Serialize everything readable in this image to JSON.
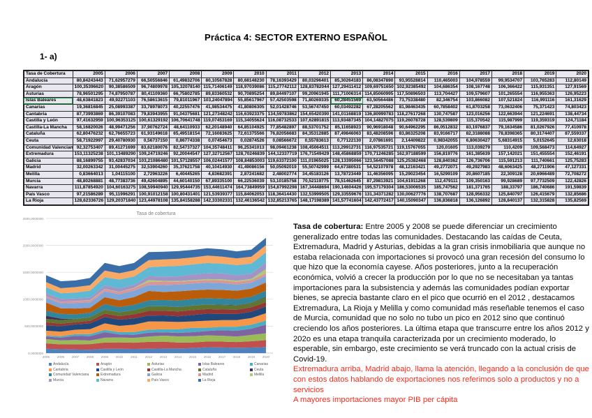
{
  "page": {
    "title": "Práctica 4: SECTOR EXTERNO ESPAÑOL",
    "exercise_label": "1- a)"
  },
  "colors": {
    "red_text": "#FC2B1C",
    "table_cell_bg": "#E8E7F0",
    "active_cell_outline": "#1E9F4E",
    "grid_line": "#D9D9D9",
    "axis_text": "#8C8C8C",
    "chart_title_text": "#7F7F7F"
  },
  "table": {
    "header_label": "Tasa de Cobertura",
    "years": [
      "2005",
      "2006",
      "2007",
      "2008",
      "2009",
      "2010",
      "2011",
      "2012",
      "2013",
      "2014",
      "2015",
      "2016",
      "2017",
      "2018",
      "2019",
      "2020"
    ],
    "active_cell": {
      "region": "Islas Baleares",
      "year": "2013"
    },
    "rows": [
      {
        "name": "Andalucía",
        "values": [
          "80,84243443",
          "71,62957279",
          "66,50556846",
          "61,49832706",
          "80,10567828",
          "80,68148230",
          "78,16393429",
          "80,03296401",
          "85,30264183",
          "86,08347890",
          "93,95528814",
          "110,465003",
          "104,978559",
          "99,9534707",
          "103,765283",
          "112,80149"
        ]
      },
      {
        "name": "Aragón",
        "values": [
          "100,35396620",
          "90,38586509",
          "96,74809978",
          "105,32078140",
          "115,71406149",
          "118,97039086",
          "115,27742112",
          "128,83782044",
          "127,29411412",
          "109,69751650",
          "102,92385492",
          "104,686354",
          "108,167748",
          "106,366422",
          "115,931351",
          "127,91569"
        ]
      },
      {
        "name": "Asturias",
        "values": [
          "78,96501295",
          "74,87950787",
          "80,41109360",
          "66,75802785",
          "89,83360532",
          "90,70895254",
          "89,84497107",
          "99,20961945",
          "111,71006314",
          "114,85060995",
          "117,50896503",
          "113,704427",
          "109,579607",
          "101,265554",
          "116,955363",
          "126,95223"
        ]
      },
      {
        "name": "Islas Baleares",
        "values": [
          "48,63841823",
          "49,92271103",
          "76,58613615",
          "79,81011967",
          "103,24047894",
          "55,85617967",
          "57,42503598",
          "71,80269335",
          "60,28451569",
          "63,50564486",
          "73,75338480",
          "82,346754",
          "103,866082",
          "107,521824",
          "116,991116",
          "161,31629"
        ]
      },
      {
        "name": "Canarias",
        "values": [
          "19,36816845",
          "25,08993387",
          "33,78978073",
          "40,22557476",
          "41,98534475",
          "41,80806305",
          "52,01428746",
          "53,56747450",
          "60,03492282",
          "67,28205562",
          "81,98463435",
          "60,7858402",
          "61,8703258",
          "73,0632406",
          "75,371423",
          "74,803423"
        ]
      },
      {
        "name": "Cantabria",
        "values": [
          "87,73993869",
          "86,39107083",
          "79,83943955",
          "91,04375681",
          "121,27348242",
          "116,63923375",
          "134,59783862",
          "154,65420390",
          "141,01168819",
          "136,80999783",
          "118,27617268",
          "130,747587",
          "123,016256",
          "122,663944",
          "121,224691",
          "138,44734"
        ]
      },
      {
        "name": "Castilla y León",
        "values": [
          "97,41632959",
          "100,96353125",
          "100,61329192",
          "106,70641748",
          "119,07453169",
          "115,34055624",
          "116,08732533",
          "107,62891815",
          "113,93487345",
          "104,14827075",
          "119,26078728",
          "128,539809",
          "115,370542",
          "115,987999",
          "119,359319",
          "124,71184"
        ]
      },
      {
        "name": "Castilla-La Mancha",
        "values": [
          "58,16820026",
          "48,99471256",
          "37,90762724",
          "48,64110933",
          "62,20148940",
          "64,85104925",
          "77,85482897",
          "88,53701752",
          "85,11658923",
          "90,96918048",
          "90,64962295",
          "86,0512832",
          "83,1976837",
          "79,1634586",
          "81,0267926",
          "77,410978"
        ]
      },
      {
        "name": "Cataluña",
        "values": [
          "62,80476232",
          "62,76655723",
          "61,93149618",
          "65,49518154",
          "72,16083625",
          "72,61375566",
          "76,82056683",
          "84,35312885",
          "87,49846063",
          "83,48208596",
          "83,86325208",
          "83,9166717",
          "82,3188088",
          "78,8398365",
          "80,3174407",
          "87,559337"
        ]
      },
      {
        "name": "Ceuta",
        "values": [
          "58,71922997",
          "29,40780930",
          "0,56737150",
          "0,86774338",
          "0,07454673",
          "0,02874526",
          "0,08566672",
          "0,55783613",
          "0,77122130",
          "2,07861691",
          "2,14409822",
          "0,98342055",
          "6,80630427",
          "5,68314915",
          "5,0152645",
          "12,63018"
        ]
      },
      {
        "name": "Comunidad Valenciana",
        "values": [
          "92,32753407",
          "89,41271699",
          "83,62180076",
          "82,54737327",
          "104,35748411",
          "96,25341013",
          "98,09461238",
          "108,45064511",
          "113,29912731",
          "116,97535721",
          "119,15767055",
          "120,01605",
          "113,039279",
          "110,4209",
          "109,568473",
          "114,64927"
        ]
      },
      {
        "name": "Extremadura",
        "values": [
          "153,11325238",
          "101,13489290",
          "109,24719246",
          "92,20044547",
          "127,32712567",
          "128,70246839",
          "144,12337719",
          "176,71549429",
          "148,45868859",
          "170,71246285",
          "162,97188599",
          "156,819776",
          "161,385639",
          "157,142021",
          "151,455554",
          "152,46191"
        ]
      },
      {
        "name": "Galicia",
        "values": [
          "88,16899755",
          "93,42837034",
          "103,21086480",
          "101,57128557",
          "106,02441577",
          "108,84853003",
          "119,63372100",
          "111,01965025",
          "128,13395066",
          "123,56457088",
          "125,25382468",
          "128,840362",
          "126,736706",
          "115,591213",
          "111,740661",
          "125,75283"
        ]
      },
      {
        "name": "Madrid",
        "values": [
          "32,00263342",
          "31,00445275",
          "32,53904260",
          "35,37621758",
          "40,10414930",
          "41,49086156",
          "50,05092019",
          "55,50742999",
          "64,67380531",
          "54,52107978",
          "48,12163421",
          "49,2772071",
          "49,2927983",
          "48,6063425",
          "48,2711906",
          "47,127331"
        ]
      },
      {
        "name": "Melilla",
        "values": [
          "0,83664013",
          "1,04115100",
          "2,72963226",
          "6,40445265",
          "4,83682391",
          "2,87241682",
          "2,48002774",
          "34,45183126",
          "13,78723449",
          "11,46356095",
          "15,29023454",
          "16,5299109",
          "20,8607185",
          "22,309128",
          "20,6966489",
          "72,708272"
        ]
      },
      {
        "name": "Murcia",
        "values": [
          "48,80268881",
          "48,77383736",
          "49,42604895",
          "44,60140150",
          "67,89335100",
          "66,22536039",
          "53,10185758",
          "70,52119775",
          "78,51462645",
          "87,29813921",
          "104,61911268",
          "112,479111",
          "109,350163",
          "99,928689",
          "97,7732509",
          "122,42826"
        ]
      },
      {
        "name": "Navarra",
        "values": [
          "111,87854920",
          "104,60163275",
          "108,59940940",
          "129,95444735",
          "153,44611474",
          "164,73849959",
          "154,87992298",
          "167,34448694",
          "190,14604426",
          "195,57179304",
          "186,53006535",
          "185,747562",
          "181,371765",
          "188,33797",
          "186,740686",
          "191,59839"
        ]
      },
      {
        "name": "País Vasco",
        "values": [
          "97,21586289",
          "95,11996291",
          "100,91012158",
          "100,80431401",
          "121,53939377",
          "115,84062053",
          "118,36414430",
          "132,53999505",
          "129,33559676",
          "131,34371282",
          "130,00627776",
          "138,707687",
          "128,956332",
          "125,840797",
          "126,415679",
          "132,85686"
        ]
      },
      {
        "name": "La Rioja",
        "values": [
          "128,62336726",
          "129,20371840",
          "123,44978108",
          "135,84158288",
          "142,33302331",
          "132,46136542",
          "132,85213765",
          "148,17198389",
          "141,57741604",
          "142,43772417",
          "140,15090347",
          "136,836818",
          "136,126892",
          "128,840137",
          "132,315828",
          "135,82569"
        ]
      }
    ]
  },
  "chart_data": {
    "type": "area",
    "stacked": true,
    "title": "Tasa de cobertura",
    "xlabel": "",
    "ylabel": "",
    "grid": true,
    "legend_position": "bottom",
    "ylim": [
      0,
      2500
    ],
    "yticks": [
      0,
      500,
      1000,
      1500,
      2000,
      2500
    ],
    "ytick_labels": [
      "0,0000000",
      "500,0000000",
      "1000,0000000",
      "1500,0000000",
      "2000,0000000",
      "2500,0000000"
    ],
    "x": [
      "2005",
      "2006",
      "2007",
      "2008",
      "2009",
      "2010",
      "2011",
      "2012",
      "2013",
      "2014",
      "2015",
      "2016",
      "2017",
      "2018",
      "2019",
      "2020"
    ],
    "series": [
      {
        "name": "Andalucía",
        "color": "#4F81BD",
        "values": [
          80.84,
          71.63,
          66.51,
          61.5,
          80.11,
          80.68,
          78.16,
          80.03,
          85.3,
          86.08,
          93.96,
          110.47,
          104.98,
          99.95,
          103.77,
          112.8
        ]
      },
      {
        "name": "Aragón",
        "color": "#C0504D",
        "values": [
          100.35,
          90.39,
          96.75,
          105.32,
          115.71,
          118.97,
          115.28,
          128.84,
          127.29,
          109.7,
          102.92,
          104.69,
          108.17,
          106.37,
          115.93,
          127.92
        ]
      },
      {
        "name": "Asturias",
        "color": "#9BBB59",
        "values": [
          78.97,
          74.88,
          80.41,
          66.76,
          89.83,
          90.71,
          89.84,
          99.21,
          111.71,
          114.85,
          117.51,
          113.7,
          109.58,
          101.27,
          116.96,
          126.95
        ]
      },
      {
        "name": "Islas Baleares",
        "color": "#8064A2",
        "values": [
          48.64,
          49.92,
          76.59,
          79.81,
          103.24,
          55.86,
          57.43,
          71.8,
          60.28,
          63.51,
          73.75,
          82.35,
          103.87,
          107.52,
          116.99,
          161.32
        ]
      },
      {
        "name": "Canarias",
        "color": "#4BACC6",
        "values": [
          19.37,
          25.09,
          33.79,
          40.23,
          41.99,
          41.81,
          52.01,
          53.57,
          60.03,
          67.28,
          81.98,
          60.79,
          61.87,
          73.06,
          75.37,
          74.8
        ]
      },
      {
        "name": "Cantabria",
        "color": "#F79646",
        "values": [
          87.74,
          86.39,
          79.84,
          91.04,
          121.27,
          116.64,
          134.6,
          154.65,
          141.01,
          136.81,
          118.28,
          130.75,
          123.02,
          122.66,
          121.22,
          138.45
        ]
      },
      {
        "name": "Castilla y León",
        "color": "#1F497D",
        "values": [
          97.42,
          100.96,
          100.61,
          106.71,
          119.07,
          115.34,
          116.09,
          107.63,
          113.93,
          104.15,
          119.26,
          128.54,
          115.37,
          115.99,
          119.36,
          124.71
        ]
      },
      {
        "name": "Castilla-La Mancha",
        "color": "#943634",
        "values": [
          58.17,
          48.99,
          37.91,
          48.64,
          62.2,
          64.85,
          77.85,
          88.54,
          85.12,
          90.97,
          90.65,
          86.05,
          83.2,
          79.16,
          81.03,
          77.41
        ]
      },
      {
        "name": "Cataluña",
        "color": "#5F7530",
        "values": [
          62.8,
          62.77,
          61.93,
          65.5,
          72.16,
          72.61,
          76.82,
          84.35,
          87.5,
          83.48,
          83.86,
          83.92,
          82.32,
          78.84,
          80.32,
          87.56
        ]
      },
      {
        "name": "Ceuta",
        "color": "#403152",
        "values": [
          58.72,
          29.41,
          0.57,
          0.87,
          0.07,
          0.03,
          0.09,
          0.56,
          0.77,
          2.08,
          2.14,
          0.98,
          6.81,
          5.68,
          5.02,
          12.63
        ]
      },
      {
        "name": "Comunidad Valenciana",
        "color": "#31859C",
        "values": [
          92.33,
          89.41,
          83.62,
          82.55,
          104.36,
          96.25,
          98.09,
          108.45,
          113.3,
          116.98,
          119.16,
          120.02,
          113.04,
          110.42,
          109.57,
          114.65
        ]
      },
      {
        "name": "Extremadura",
        "color": "#BA5D0B",
        "values": [
          153.11,
          101.13,
          109.25,
          92.2,
          127.33,
          128.7,
          144.12,
          176.72,
          148.46,
          170.71,
          162.97,
          156.82,
          161.39,
          157.14,
          151.46,
          152.46
        ]
      },
      {
        "name": "Galicia",
        "color": "#7EA6D8",
        "values": [
          88.17,
          93.43,
          103.21,
          101.57,
          106.02,
          108.85,
          119.63,
          111.02,
          128.13,
          123.56,
          125.25,
          128.84,
          126.74,
          115.59,
          111.74,
          125.75
        ]
      },
      {
        "name": "Madrid",
        "color": "#D99694",
        "values": [
          32.0,
          31.0,
          32.54,
          35.38,
          40.1,
          41.49,
          50.05,
          55.51,
          64.67,
          54.52,
          48.12,
          49.28,
          49.29,
          48.61,
          48.27,
          47.13
        ]
      },
      {
        "name": "Melilla",
        "color": "#AFCA74",
        "values": [
          0.84,
          1.04,
          2.73,
          6.4,
          4.84,
          2.87,
          2.48,
          34.45,
          13.79,
          11.46,
          15.29,
          16.53,
          20.86,
          22.31,
          20.7,
          72.71
        ]
      },
      {
        "name": "Murcia",
        "color": "#A294C5",
        "values": [
          48.8,
          48.77,
          49.43,
          44.6,
          67.89,
          66.23,
          53.1,
          70.52,
          78.51,
          87.3,
          104.62,
          112.48,
          109.35,
          99.93,
          97.77,
          122.43
        ]
      },
      {
        "name": "Navarra",
        "color": "#5FB8D4",
        "values": [
          111.88,
          104.6,
          108.6,
          129.95,
          153.45,
          164.74,
          154.88,
          167.34,
          190.15,
          195.57,
          186.53,
          185.75,
          181.37,
          188.34,
          186.74,
          191.6
        ]
      },
      {
        "name": "País Vasco",
        "color": "#F9A963",
        "values": [
          97.22,
          95.12,
          100.91,
          100.8,
          121.54,
          115.84,
          118.36,
          132.54,
          129.34,
          131.34,
          130.01,
          138.71,
          128.96,
          125.84,
          126.42,
          132.86
        ]
      },
      {
        "name": "La Rioja",
        "color": "#3A6EA8",
        "values": [
          128.62,
          129.2,
          123.45,
          135.84,
          142.33,
          132.46,
          132.85,
          148.17,
          141.58,
          142.44,
          140.15,
          136.84,
          136.13,
          128.84,
          132.32,
          135.83
        ]
      }
    ]
  },
  "commentary": {
    "lead": "Tasa de cobertura:",
    "body": " Entre 2005 y 2008 se puede diferenciar un crecimiento generalizado entre todas las comunidades. Destacando las caídas de Ceuta, Extremadura, Madrid y Asturias, debidas a la gran crisis inmobiliaria que aunque no estaba relacionada con importaciones si provocó una gran recesión del consumo lo que hizo que la economía cayese. Años posteriores, junto a la recuperación económica, volvió a crecer la producción por lo que no se necesitaban ya tantas importaciones para la subsistencia y además las comunidades podían exportar bienes, se aprecia bastante claro en el pico que ocurrió en el 2012 , destacamos Extremadura, La Rioja y Melilla y como comunidad más reseñable tenemos el caso de Murcia, comunidad que no solo no tubo un pico en 2012 sino que continuó creciendo los años posteriores. La última etapa que transcurre entre los años 2012 y 202o es una etapa tranquila caracterizada por un crecimiento moderado, lo esperable, sin embargo, este crecimiento se verá truncado con la actual crisis de Covid-19.",
    "red_note": "Extremadura arriba, Madrid abajo, llama la atención, llegando a la conclusión de que con estos datos hablando de exportaciones nos referimos solo a productos y no a servicios",
    "red_note_2": "A mayores importaciones mayor PIB per cápita"
  }
}
